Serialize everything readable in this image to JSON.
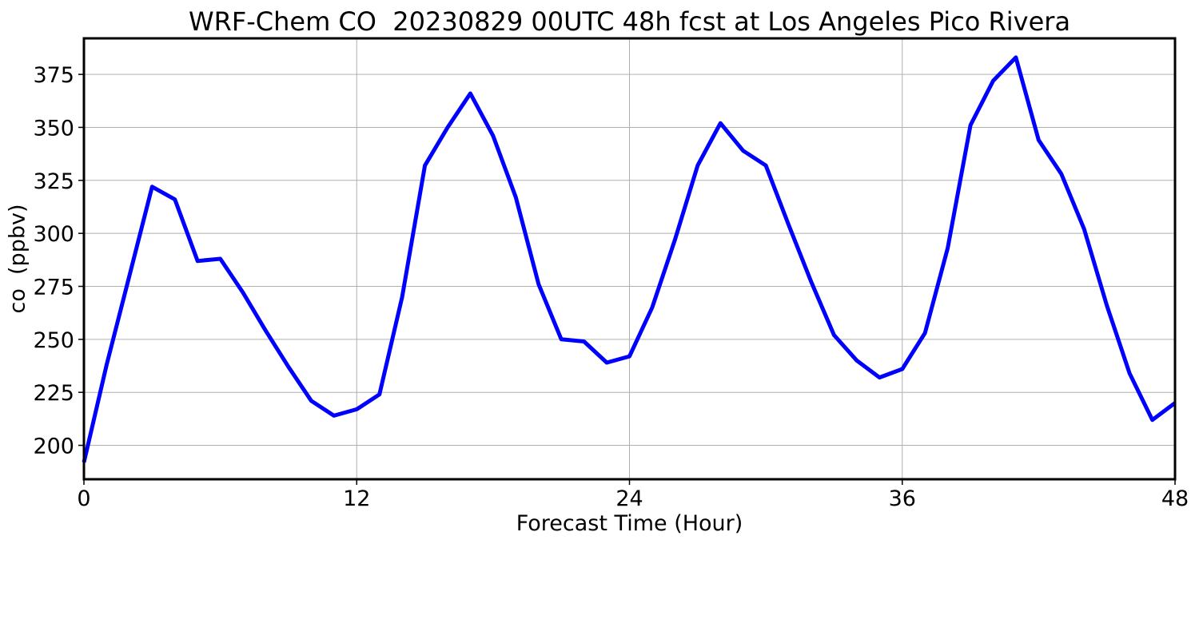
{
  "chart_data": {
    "type": "line",
    "title": "WRF-Chem CO  20230829 00UTC 48h fcst at Los Angeles Pico Rivera",
    "xlabel": "Forecast Time (Hour)",
    "ylabel": "co  (ppbv)",
    "xlim": [
      0,
      48
    ],
    "ylim": [
      184,
      392
    ],
    "xticks": [
      0,
      12,
      24,
      36,
      48
    ],
    "yticks": [
      200,
      225,
      250,
      275,
      300,
      325,
      350,
      375
    ],
    "grid": true,
    "series": [
      {
        "color": "#0000ff",
        "x": [
          0,
          1,
          2,
          3,
          4,
          5,
          6,
          7,
          8,
          9,
          10,
          11,
          12,
          13,
          14,
          15,
          16,
          17,
          18,
          19,
          20,
          21,
          22,
          23,
          24,
          25,
          26,
          27,
          28,
          29,
          30,
          31,
          32,
          33,
          34,
          35,
          36,
          37,
          38,
          39,
          40,
          41,
          42,
          43,
          44,
          45,
          46,
          47,
          48
        ],
        "y": [
          192,
          238,
          280,
          322,
          316,
          287,
          288,
          272,
          254,
          237,
          221,
          214,
          217,
          224,
          270,
          332,
          350,
          366,
          346,
          317,
          276,
          250,
          249,
          239,
          242,
          265,
          297,
          332,
          352,
          339,
          332,
          304,
          277,
          252,
          240,
          232,
          236,
          253,
          293,
          351,
          372,
          383,
          344,
          328,
          302,
          266,
          234,
          212,
          220
        ]
      }
    ]
  }
}
